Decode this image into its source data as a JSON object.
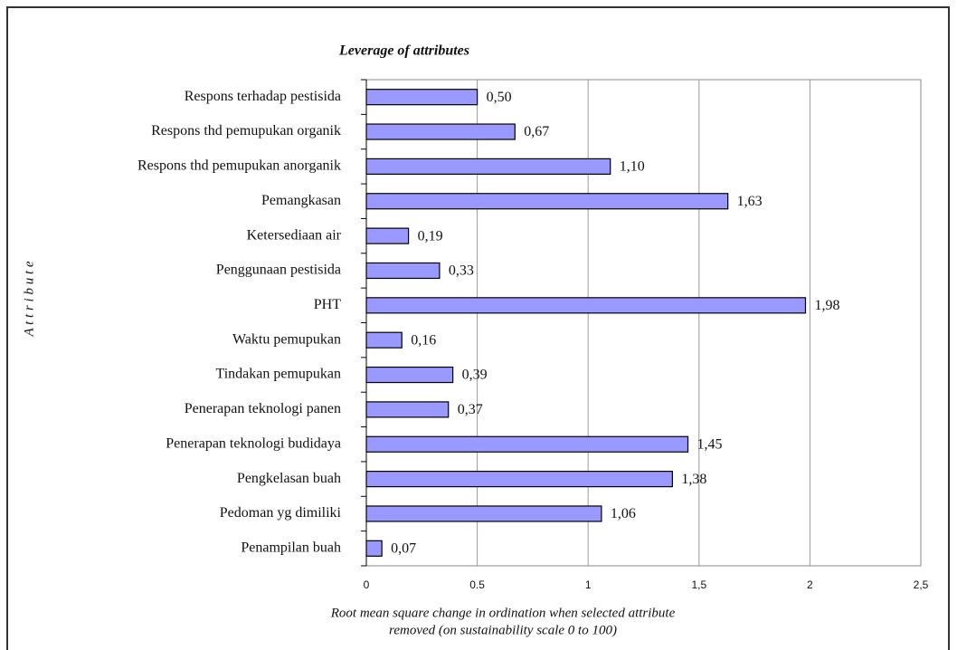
{
  "chart_data": {
    "type": "hbar",
    "title": "Leverage of attributes",
    "categories": [
      "Respons terhadap pestisida",
      "Respons thd pemupukan organik",
      "Respons thd pemupukan anorganik",
      "Pemangkasan",
      "Ketersediaan air",
      "Penggunaan pestisida",
      "PHT",
      "Waktu pemupukan",
      "Tindakan pemupukan",
      "Penerapan teknologi panen",
      "Penerapan teknologi budidaya",
      "Pengkelasan buah",
      "Pedoman yg dimiliki",
      "Penampilan buah"
    ],
    "values": [
      0.5,
      0.67,
      1.1,
      1.63,
      0.19,
      0.33,
      1.98,
      0.16,
      0.39,
      0.37,
      1.45,
      1.38,
      1.06,
      0.07
    ],
    "value_labels": [
      "0,50",
      "0,67",
      "1,10",
      "1,63",
      "0,19",
      "0,33",
      "1,98",
      "0,16",
      "0,39",
      "0,37",
      "1,45",
      "1,38",
      "1,06",
      "0,07"
    ],
    "color": "#9999ff",
    "xlim": [
      0,
      2.5
    ],
    "xticks": [
      0,
      0.5,
      1,
      {
        "value": 1.5,
        "label": "1,5"
      },
      2,
      {
        "value": 2.5,
        "label": "2,5"
      }
    ],
    "xlabel": [
      "Root mean square change in ordination when selected attribute",
      "removed (on sustainability scale 0 to 100)"
    ],
    "ylabel": "A t t r i b u t e",
    "grid": true
  }
}
